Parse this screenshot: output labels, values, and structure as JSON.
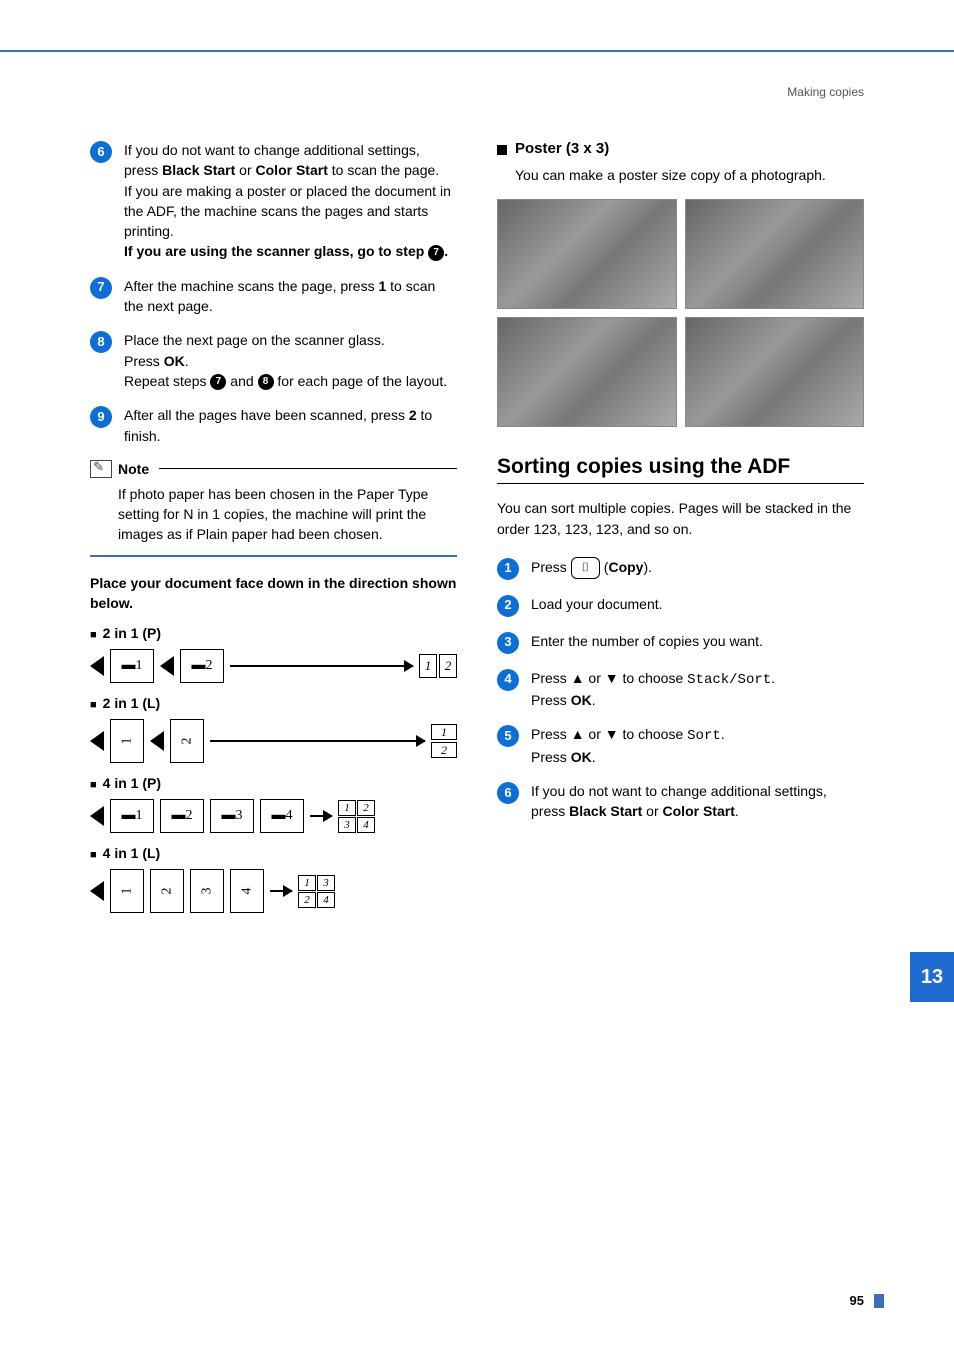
{
  "header": {
    "section": "Making copies"
  },
  "left": {
    "steps": [
      {
        "n": "6",
        "html": "If you do not want to change additional settings, press <b>Black Start</b> or <b>Color Start</b> to scan the page.<br>If you are making a poster or placed the document in the ADF, the machine scans the pages and starts printing.<br><b>If you are using the scanner glass, go to step </b><span class='inline-circle'>7</span><b>.</b>"
      },
      {
        "n": "7",
        "html": "After the machine scans the page, press <b>1</b> to scan the next page."
      },
      {
        "n": "8",
        "html": "Place the next page on the scanner glass.<br>Press <b>OK</b>.<br>Repeat steps <span class='inline-circle'>7</span> and <span class='inline-circle'>8</span> for each page of the layout."
      },
      {
        "n": "9",
        "html": "After all the pages have been scanned, press <b>2</b> to finish."
      }
    ],
    "note": {
      "title": "Note",
      "body": "If photo paper has been chosen in the Paper Type setting for N in 1 copies, the machine will print the images as if Plain paper had been chosen."
    },
    "placeDoc": "Place your document face down in the direction shown below.",
    "layouts": {
      "p2": {
        "label": "2 in 1 (P)",
        "g1": "1",
        "g2": "2",
        "r": [
          "1",
          "2"
        ]
      },
      "l2": {
        "label": "2 in 1 (L)",
        "g1": "1",
        "g2": "2",
        "r": [
          "1",
          "2"
        ]
      },
      "p4": {
        "label": "4 in 1 (P)",
        "g": [
          "1",
          "2",
          "3",
          "4"
        ],
        "r": [
          "1",
          "2",
          "3",
          "4"
        ]
      },
      "l4": {
        "label": "4 in 1 (L)",
        "g": [
          "1",
          "2",
          "3",
          "4"
        ],
        "r": [
          "1",
          "3",
          "2",
          "4"
        ]
      }
    }
  },
  "right": {
    "poster": {
      "title": "Poster (3 x 3)",
      "text": "You can make a poster size copy of a photograph."
    },
    "sort": {
      "heading": "Sorting copies using the ADF",
      "intro": "You can sort multiple copies. Pages will be stacked in the order 123, 123, 123, and so on.",
      "steps": [
        {
          "n": "1",
          "html": "Press <span class='copy-btn'>⌷</span> (<b>Copy</b>)."
        },
        {
          "n": "2",
          "html": "Load your document."
        },
        {
          "n": "3",
          "html": "Enter the number of copies you want."
        },
        {
          "n": "4",
          "html": "Press <b>▲</b> or <b>▼</b> to choose <span class='mono'>Stack/Sort</span>.<br>Press <b>OK</b>."
        },
        {
          "n": "5",
          "html": "Press <b>▲</b> or <b>▼</b> to choose <span class='mono'>Sort</span>.<br>Press <b>OK</b>."
        },
        {
          "n": "6",
          "html": "If you do not want to change additional settings, press <b>Black Start</b> or <b>Color Start</b>."
        }
      ]
    }
  },
  "tab": "13",
  "pageNumber": "95",
  "colors": {
    "accent": "#3b6fb6",
    "stepCircle": "#0d6fd6",
    "tab": "#1f6bd0"
  }
}
